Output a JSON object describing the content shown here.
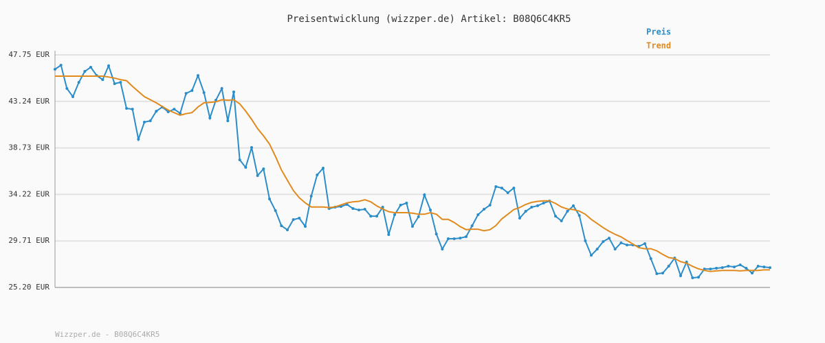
{
  "chart_data": {
    "type": "line",
    "title": "Preisentwicklung (wizzper.de) Artikel: B08Q6C4KR5",
    "footer": "Wizzper.de - B08Q6C4KR5",
    "ylim": [
      25.2,
      47.75
    ],
    "yticks": [
      {
        "value": 25.2,
        "label": "25.20 EUR"
      },
      {
        "value": 29.71,
        "label": "29.71 EUR"
      },
      {
        "value": 34.22,
        "label": "34.22 EUR"
      },
      {
        "value": 38.73,
        "label": "38.73 EUR"
      },
      {
        "value": 43.24,
        "label": "43.24 EUR"
      },
      {
        "value": 47.75,
        "label": "47.75 EUR"
      }
    ],
    "grid": true,
    "legend": "top-right",
    "series": [
      {
        "name": "Preis",
        "color": "#2a8cc9",
        "values": [
          46.35,
          46.75,
          44.49,
          43.69,
          45.09,
          46.15,
          46.55,
          45.75,
          45.35,
          46.69,
          44.96,
          45.09,
          42.56,
          42.49,
          39.57,
          41.23,
          41.36,
          42.29,
          42.69,
          42.23,
          42.49,
          42.09,
          44.02,
          44.29,
          45.75,
          44.09,
          41.63,
          43.36,
          44.49,
          41.36,
          44.16,
          37.57,
          36.84,
          38.77,
          36.04,
          36.7,
          33.78,
          32.65,
          31.18,
          30.78,
          31.78,
          31.92,
          31.12,
          34.05,
          36.11,
          36.77,
          32.85,
          32.98,
          33.05,
          33.25,
          32.85,
          32.71,
          32.78,
          32.11,
          32.11,
          32.98,
          30.32,
          32.25,
          33.18,
          33.38,
          31.12,
          32.05,
          34.18,
          32.71,
          30.38,
          28.92,
          29.92,
          29.92,
          29.98,
          30.12,
          31.18,
          32.25,
          32.78,
          33.18,
          34.98,
          34.84,
          34.38,
          34.84,
          31.92,
          32.58,
          32.98,
          33.12,
          33.38,
          33.58,
          32.11,
          31.65,
          32.58,
          33.12,
          32.18,
          29.72,
          28.32,
          28.92,
          29.65,
          29.98,
          28.92,
          29.52,
          29.32,
          29.32,
          29.19,
          29.45,
          27.99,
          26.53,
          26.59,
          27.26,
          28.05,
          26.33,
          27.66,
          26.13,
          26.19,
          26.99,
          26.99,
          27.06,
          27.12,
          27.26,
          27.19,
          27.39,
          27.06,
          26.59,
          27.26,
          27.19,
          27.12
        ]
      },
      {
        "name": "Trend",
        "color": "#e08a1e",
        "values": [
          45.69,
          45.69,
          45.69,
          45.69,
          45.69,
          45.69,
          45.69,
          45.69,
          45.69,
          45.6,
          45.5,
          45.35,
          45.25,
          44.7,
          44.2,
          43.7,
          43.4,
          43.1,
          42.75,
          42.4,
          42.15,
          41.9,
          42.05,
          42.15,
          42.7,
          43.1,
          43.15,
          43.2,
          43.4,
          43.35,
          43.4,
          43.0,
          42.3,
          41.5,
          40.6,
          39.9,
          39.1,
          37.9,
          36.6,
          35.6,
          34.6,
          33.9,
          33.4,
          33.0,
          33.0,
          33.0,
          32.95,
          33.0,
          33.2,
          33.4,
          33.5,
          33.55,
          33.7,
          33.5,
          33.1,
          32.8,
          32.55,
          32.45,
          32.45,
          32.45,
          32.4,
          32.3,
          32.3,
          32.45,
          32.3,
          31.8,
          31.8,
          31.5,
          31.1,
          30.8,
          30.85,
          30.85,
          30.7,
          30.8,
          31.2,
          31.85,
          32.3,
          32.75,
          32.95,
          33.25,
          33.45,
          33.55,
          33.6,
          33.6,
          33.35,
          33.0,
          32.8,
          32.75,
          32.6,
          32.3,
          31.8,
          31.4,
          31.0,
          30.65,
          30.35,
          30.1,
          29.75,
          29.4,
          29.05,
          28.95,
          28.95,
          28.75,
          28.4,
          28.1,
          28.0,
          27.7,
          27.55,
          27.25,
          27.0,
          26.85,
          26.75,
          26.8,
          26.85,
          26.85,
          26.85,
          26.8,
          26.85,
          26.85,
          26.85,
          26.9,
          26.9
        ]
      }
    ]
  }
}
